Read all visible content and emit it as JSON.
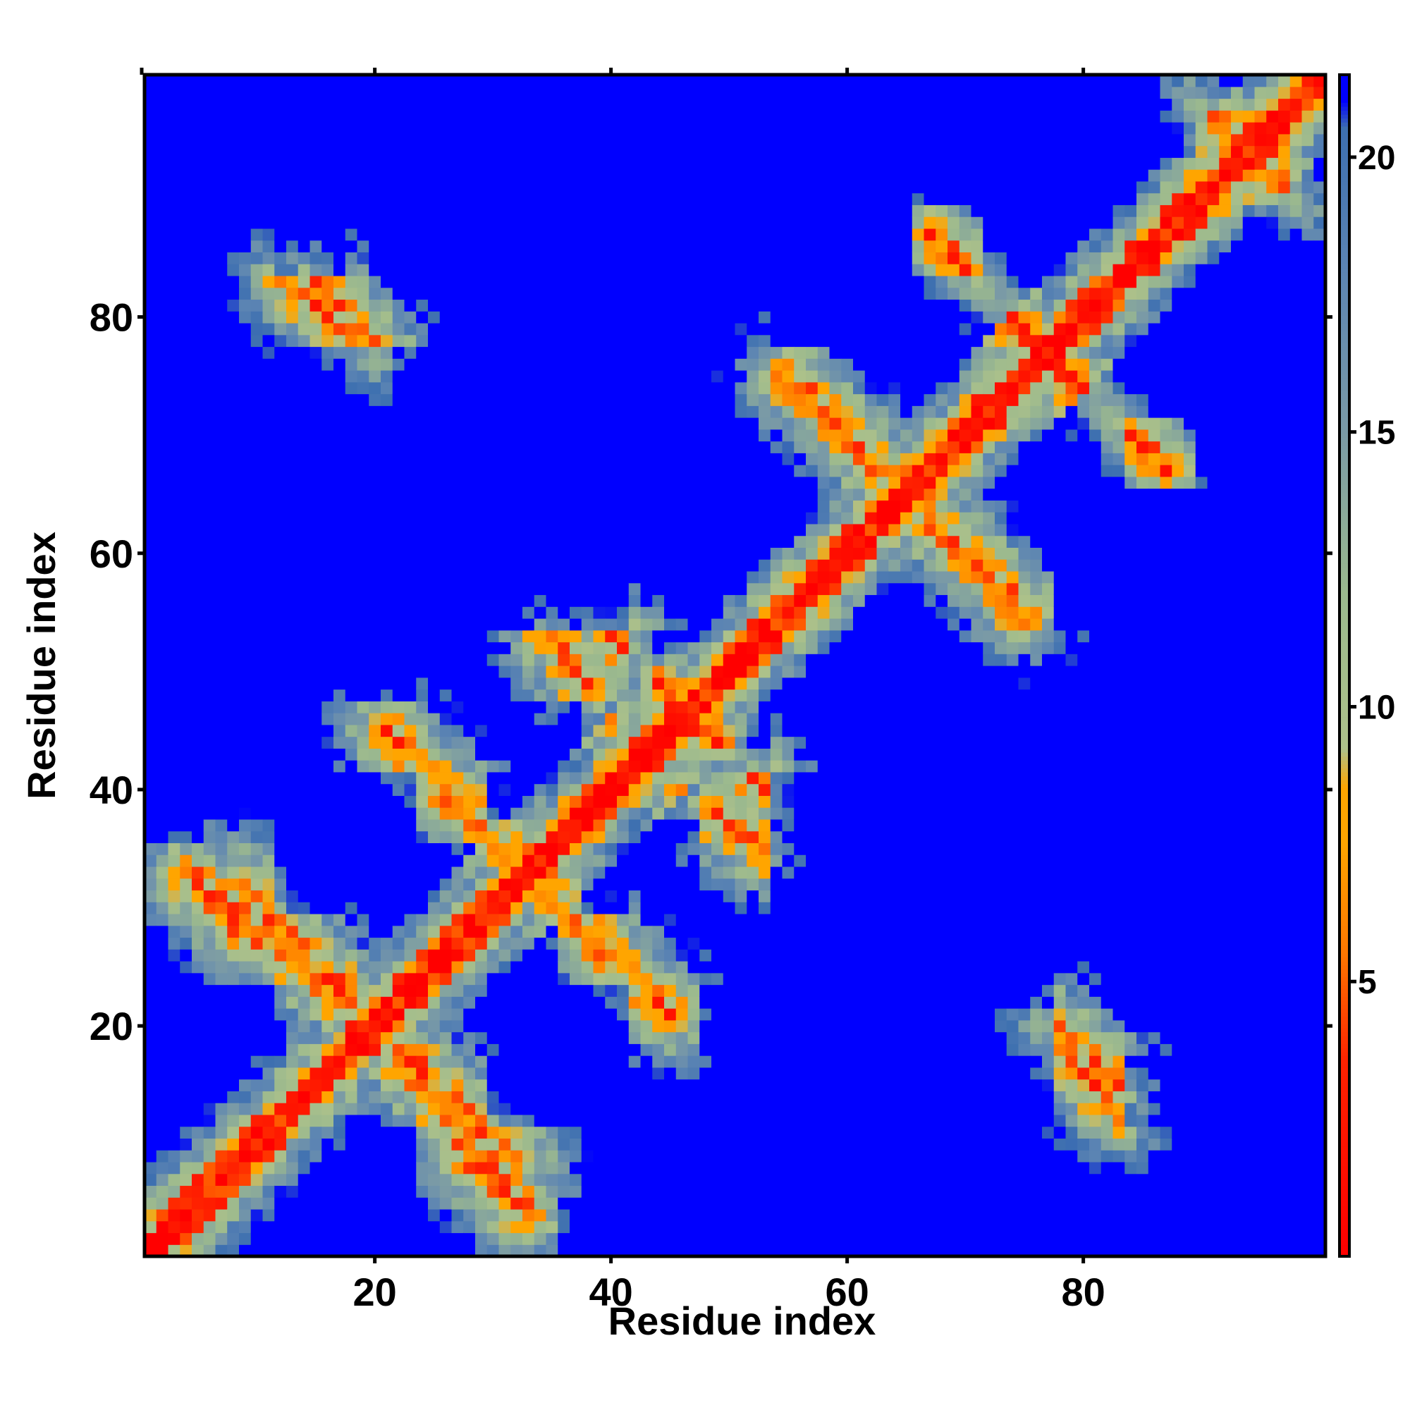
{
  "chart_data": {
    "type": "heatmap",
    "title": "",
    "xlabel": "Residue index",
    "ylabel": "Residue index",
    "n_residues": 100,
    "xlim": [
      1,
      100
    ],
    "ylim": [
      1,
      100
    ],
    "x_ticks": [
      20,
      40,
      60,
      80
    ],
    "y_ticks": [
      20,
      40,
      60,
      80
    ],
    "x_tick_labels": [
      "20",
      "40",
      "60",
      "80"
    ],
    "y_tick_labels": [
      "20",
      "40",
      "60",
      "80"
    ],
    "grid": false,
    "legend": "colorbar on right",
    "value_range": [
      0,
      21.5
    ],
    "cutoff_above": 21,
    "colorbar": {
      "ticks": [
        5,
        10,
        15,
        20
      ],
      "tick_labels": [
        "5",
        "10",
        "15",
        "20"
      ],
      "stops": [
        {
          "value": 0,
          "color": "#ff0000"
        },
        {
          "value": 3.5,
          "color": "#ff2200"
        },
        {
          "value": 5.5,
          "color": "#ff7700"
        },
        {
          "value": 7.5,
          "color": "#ffa500"
        },
        {
          "value": 8.5,
          "color": "#ffa500"
        },
        {
          "value": 9.2,
          "color": "#adc18a"
        },
        {
          "value": 12,
          "color": "#9bb98e"
        },
        {
          "value": 15,
          "color": "#7a9aa6"
        },
        {
          "value": 18,
          "color": "#5b84b3"
        },
        {
          "value": 20.5,
          "color": "#3d6fb0"
        },
        {
          "value": 21,
          "color": "#0000ff"
        },
        {
          "value": 21.5,
          "color": "#0000ff"
        }
      ]
    },
    "contact_bands": [
      {
        "i_start": 33,
        "j_start": 33,
        "i_end": 45,
        "j_end": 21,
        "note": "antiparallel contact band"
      },
      {
        "i_start": 20,
        "j_start": 20,
        "i_end": 30,
        "j_end": 8,
        "note": "antiparallel contact band"
      },
      {
        "i_start": 48,
        "j_start": 45,
        "i_end": 40,
        "j_end": 53
      },
      {
        "i_start": 27,
        "j_start": 10,
        "i_end": 33,
        "j_end": 4
      },
      {
        "i_start": 35,
        "j_start": 53,
        "i_end": 40,
        "j_end": 46
      },
      {
        "i_start": 65,
        "j_start": 65,
        "i_end": 75,
        "j_end": 55
      },
      {
        "i_start": 65,
        "j_start": 65,
        "i_end": 55,
        "j_end": 75
      },
      {
        "i_start": 77,
        "j_start": 77,
        "i_end": 87,
        "j_end": 67
      },
      {
        "i_start": 67,
        "j_start": 87,
        "i_end": 75,
        "j_end": 78
      },
      {
        "i_start": 14,
        "j_start": 84,
        "i_end": 20,
        "j_end": 77
      },
      {
        "i_start": 76,
        "j_start": 20,
        "i_end": 83,
        "j_end": 13
      },
      {
        "i_start": 9,
        "j_start": 32,
        "i_end": 18,
        "j_end": 22
      },
      {
        "i_start": 89,
        "j_start": 99,
        "i_end": 99,
        "j_end": 89,
        "note": "wide band near top-right diagonal"
      }
    ]
  }
}
